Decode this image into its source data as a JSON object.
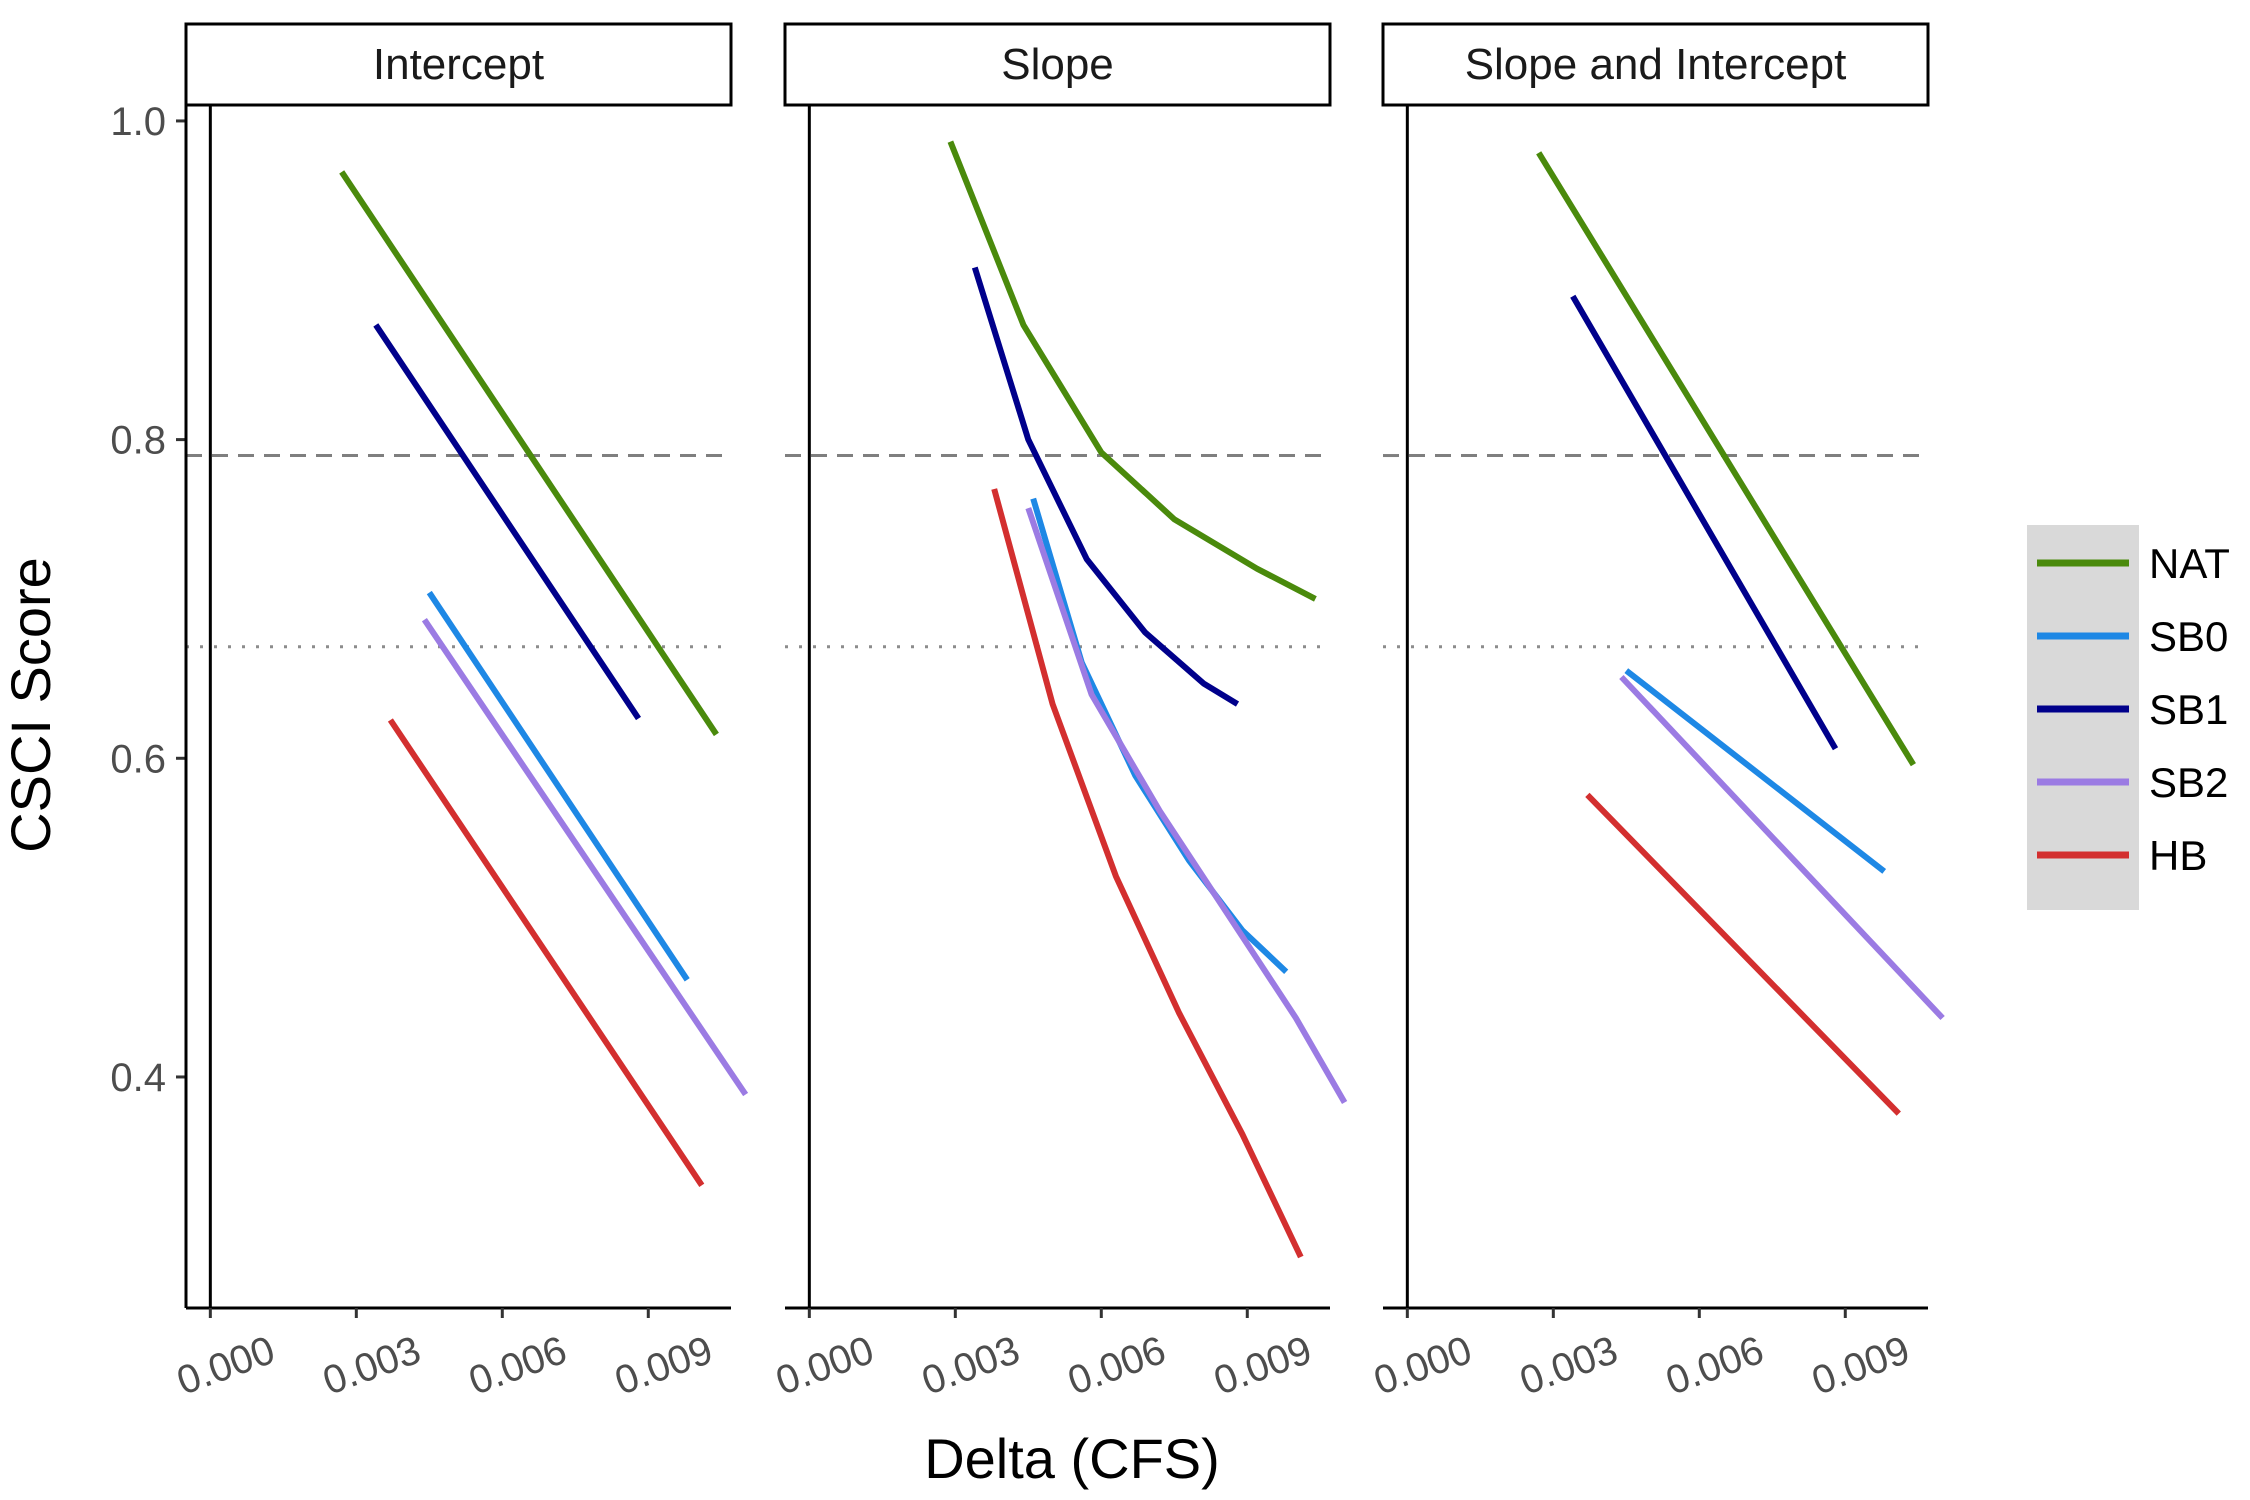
{
  "chart_data": {
    "type": "line",
    "xlabel": "Delta (CFS)",
    "ylabel": "CSCI Score",
    "xlim": [
      -0.0005,
      0.0107
    ],
    "ylim": [
      0.255,
      1.01
    ],
    "x_ticks": [
      0.0,
      0.003,
      0.006,
      0.009
    ],
    "x_tick_labels": [
      "0.000",
      "0.003",
      "0.006",
      "0.009"
    ],
    "y_ticks": [
      0.4,
      0.6,
      0.8,
      1.0
    ],
    "y_tick_labels": [
      "0.4",
      "0.6",
      "0.8",
      "1.0"
    ],
    "reference_lines": [
      {
        "y": 0.79,
        "style": "dashed"
      },
      {
        "y": 0.67,
        "style": "dotted"
      }
    ],
    "grid": false,
    "legend_position": "right",
    "legend": [
      {
        "name": "NAT",
        "color": "#4a8a0c"
      },
      {
        "name": "SB0",
        "color": "#1e88e5"
      },
      {
        "name": "SB1",
        "color": "#00008b"
      },
      {
        "name": "SB2",
        "color": "#9b7be3"
      },
      {
        "name": "HB",
        "color": "#d32f2f"
      }
    ],
    "panels": [
      {
        "title": "Intercept",
        "series": [
          {
            "name": "NAT",
            "x": [
              0.0027,
              0.0104
            ],
            "y": [
              0.968,
              0.615
            ]
          },
          {
            "name": "SB1",
            "x": [
              0.0034,
              0.0088
            ],
            "y": [
              0.872,
              0.625
            ]
          },
          {
            "name": "SB0",
            "x": [
              0.0045,
              0.0098
            ],
            "y": [
              0.704,
              0.461
            ]
          },
          {
            "name": "SB2",
            "x": [
              0.0044,
              0.011
            ],
            "y": [
              0.687,
              0.389
            ]
          },
          {
            "name": "HB",
            "x": [
              0.0037,
              0.0101
            ],
            "y": [
              0.624,
              0.332
            ]
          }
        ]
      },
      {
        "title": "Slope",
        "series": [
          {
            "name": "NAT",
            "x": [
              0.0029,
              0.0044,
              0.006,
              0.0075,
              0.0092,
              0.0104
            ],
            "y": [
              0.987,
              0.872,
              0.792,
              0.75,
              0.719,
              0.7
            ]
          },
          {
            "name": "SB1",
            "x": [
              0.0034,
              0.0045,
              0.0057,
              0.0069,
              0.0081,
              0.0088
            ],
            "y": [
              0.908,
              0.8,
              0.725,
              0.679,
              0.647,
              0.634
            ]
          },
          {
            "name": "SB0",
            "x": [
              0.0046,
              0.0056,
              0.0067,
              0.0078,
              0.0089,
              0.0098
            ],
            "y": [
              0.763,
              0.66,
              0.589,
              0.536,
              0.492,
              0.466
            ]
          },
          {
            "name": "SB2",
            "x": [
              0.0045,
              0.0058,
              0.0072,
              0.0086,
              0.01,
              0.011
            ],
            "y": [
              0.757,
              0.64,
              0.567,
              0.502,
              0.437,
              0.384
            ]
          },
          {
            "name": "HB",
            "x": [
              0.0038,
              0.005,
              0.0063,
              0.0076,
              0.0089,
              0.0101
            ],
            "y": [
              0.769,
              0.634,
              0.526,
              0.44,
              0.364,
              0.287
            ]
          }
        ]
      },
      {
        "title": "Slope and Intercept",
        "series": [
          {
            "name": "NAT",
            "x": [
              0.0027,
              0.0104
            ],
            "y": [
              0.98,
              0.596
            ]
          },
          {
            "name": "SB1",
            "x": [
              0.0034,
              0.0088
            ],
            "y": [
              0.89,
              0.606
            ]
          },
          {
            "name": "SB0",
            "x": [
              0.0045,
              0.0098
            ],
            "y": [
              0.655,
              0.529
            ]
          },
          {
            "name": "SB2",
            "x": [
              0.0044,
              0.011
            ],
            "y": [
              0.651,
              0.437
            ]
          },
          {
            "name": "HB",
            "x": [
              0.0037,
              0.0101
            ],
            "y": [
              0.577,
              0.377
            ]
          }
        ]
      }
    ]
  }
}
